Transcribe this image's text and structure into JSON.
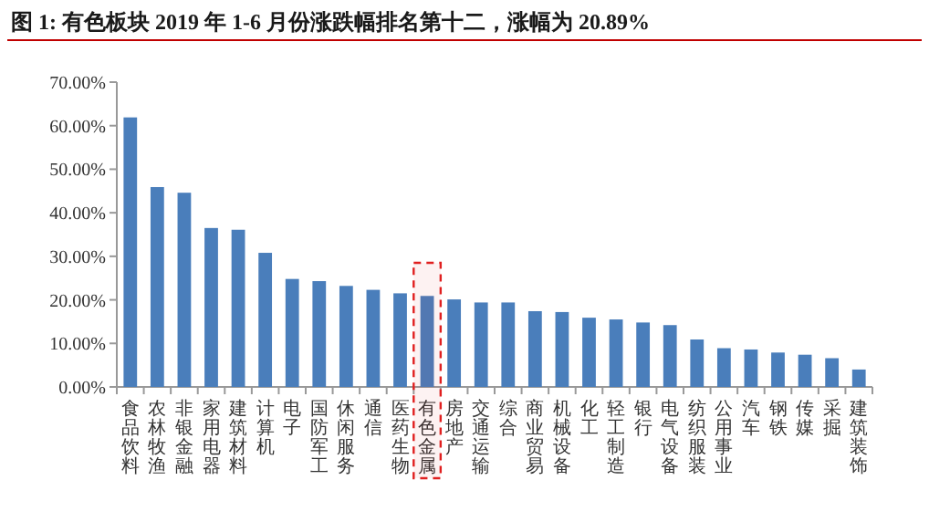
{
  "chart_data": {
    "type": "bar",
    "title": "图 1: 有色板块 2019 年 1-6 月份涨跌幅排名第十二，涨幅为 20.89%",
    "categories": [
      "食品饮料",
      "农林牧渔",
      "非银金融",
      "家用电器",
      "建筑材料",
      "计算机",
      "电子",
      "国防军工",
      "休闲服务",
      "通信",
      "医药生物",
      "有色金属",
      "房地产",
      "交通运输",
      "综合",
      "商业贸易",
      "机械设备",
      "化工",
      "轻工制造",
      "银行",
      "电气设备",
      "纺织服装",
      "公用事业",
      "汽车",
      "钢铁",
      "传媒",
      "采掘",
      "建筑装饰"
    ],
    "values": [
      61.9,
      45.9,
      44.6,
      36.5,
      36.1,
      30.8,
      24.8,
      24.3,
      23.2,
      22.3,
      21.5,
      20.9,
      20.1,
      19.4,
      19.4,
      17.4,
      17.2,
      15.9,
      15.5,
      14.8,
      14.2,
      10.9,
      8.9,
      8.6,
      7.9,
      7.4,
      6.6,
      4.0
    ],
    "color": "#4a7ebb",
    "ylim": [
      0,
      70
    ],
    "yticks": [
      {
        "value": 0,
        "label": "0.00%"
      },
      {
        "value": 10,
        "label": "10.00%"
      },
      {
        "value": 20,
        "label": "20.00%"
      },
      {
        "value": 30,
        "label": "30.00%"
      },
      {
        "value": 40,
        "label": "40.00%"
      },
      {
        "value": 50,
        "label": "50.00%"
      },
      {
        "value": 60,
        "label": "60.00%"
      },
      {
        "value": 70,
        "label": "70.00%"
      }
    ],
    "bands": [
      {
        "axis": "x",
        "from": "有色金属",
        "to": "有色金属",
        "color": "#e02020"
      }
    ],
    "grid": false
  }
}
